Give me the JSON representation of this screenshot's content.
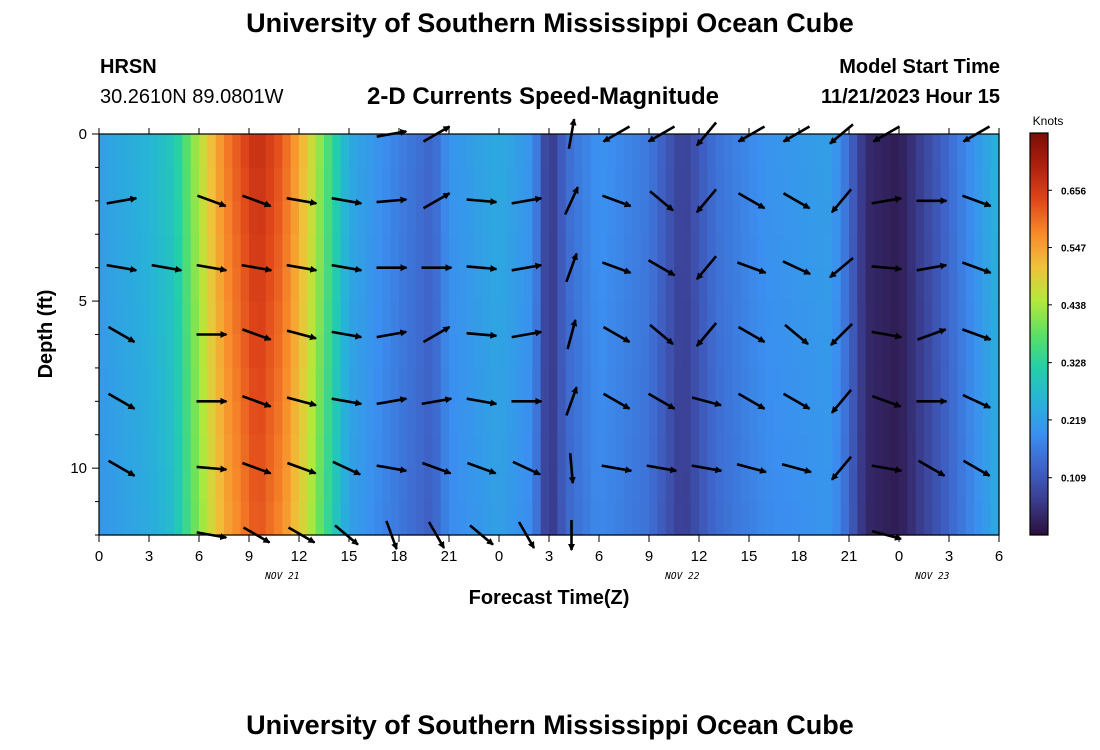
{
  "header": {
    "title": "University of Southern Mississippi Ocean Cube",
    "station": "HRSN",
    "coords": "30.2610N  89.0801W",
    "model_start_label": "Model Start Time",
    "model_start_value": "11/21/2023 Hour 15",
    "footer_title": "University of Southern Mississippi Ocean Cube"
  },
  "chart_data": {
    "type": "heatmap",
    "title": "2-D Currents Speed-Magnitude",
    "xlabel": "Forecast Time(Z)",
    "ylabel": "Depth (ft)",
    "x_tick_labels": [
      "0",
      "3",
      "6",
      "9",
      "12",
      "15",
      "18",
      "21",
      "0",
      "3",
      "6",
      "9",
      "12",
      "15",
      "18",
      "21",
      "0",
      "3",
      "6"
    ],
    "y_ticks": [
      0,
      5,
      10
    ],
    "ylim": [
      0,
      12
    ],
    "y_inverted": true,
    "date_labels": [
      {
        "text": "NOV 21",
        "x_hour": 11
      },
      {
        "text": "NOV 22",
        "x_hour": 35
      },
      {
        "text": "NOV 23",
        "x_hour": 50
      }
    ],
    "x_hours_range": [
      0,
      54
    ],
    "colorbar": {
      "unit": "Knots",
      "ticks": [
        "0.656",
        "0.547",
        "0.438",
        "0.328",
        "0.219",
        "0.109"
      ],
      "min": 0.0,
      "max": 0.765,
      "colors": [
        "#2b0f3a",
        "#3a3b8c",
        "#3f63c8",
        "#3b8ff0",
        "#27b3d8",
        "#23d0a8",
        "#5de063",
        "#b4e83a",
        "#f0c23a",
        "#f88a2a",
        "#e0461a",
        "#b0200f",
        "#7a0d05"
      ]
    },
    "speed_profile_by_hour": [
      {
        "hour": 0,
        "speed": 0.22
      },
      {
        "hour": 3,
        "speed": 0.26
      },
      {
        "hour": 4.5,
        "speed": 0.3
      },
      {
        "hour": 6,
        "speed": 0.45
      },
      {
        "hour": 7.5,
        "speed": 0.58
      },
      {
        "hour": 9.5,
        "speed": 0.68
      },
      {
        "hour": 11,
        "speed": 0.62
      },
      {
        "hour": 12.5,
        "speed": 0.5
      },
      {
        "hour": 14,
        "speed": 0.34
      },
      {
        "hour": 15,
        "speed": 0.24
      },
      {
        "hour": 18,
        "speed": 0.17
      },
      {
        "hour": 20,
        "speed": 0.13
      },
      {
        "hour": 21,
        "speed": 0.2
      },
      {
        "hour": 24,
        "speed": 0.24
      },
      {
        "hour": 26,
        "speed": 0.2
      },
      {
        "hour": 27,
        "speed": 0.05
      },
      {
        "hour": 28,
        "speed": 0.14
      },
      {
        "hour": 30,
        "speed": 0.2
      },
      {
        "hour": 33,
        "speed": 0.16
      },
      {
        "hour": 35,
        "speed": 0.07
      },
      {
        "hour": 37,
        "speed": 0.15
      },
      {
        "hour": 40,
        "speed": 0.2
      },
      {
        "hour": 44,
        "speed": 0.22
      },
      {
        "hour": 45,
        "speed": 0.14
      },
      {
        "hour": 46,
        "speed": 0.04
      },
      {
        "hour": 48,
        "speed": 0.02
      },
      {
        "hour": 50,
        "speed": 0.1
      },
      {
        "hour": 52,
        "speed": 0.18
      },
      {
        "hour": 54,
        "speed": 0.26
      }
    ],
    "vector_rows": [
      {
        "depth": 0,
        "angles": [
          null,
          null,
          null,
          null,
          null,
          null,
          10,
          30,
          null,
          null,
          80,
          -150,
          -150,
          -130,
          -150,
          -150,
          -140,
          -150,
          null,
          -150
        ]
      },
      {
        "depth": 2,
        "angles": [
          10,
          null,
          -20,
          -20,
          -10,
          -10,
          5,
          30,
          -5,
          10,
          65,
          -20,
          -40,
          -130,
          -30,
          -30,
          -130,
          10,
          0,
          -20
        ]
      },
      {
        "depth": 4,
        "angles": [
          -10,
          -10,
          -10,
          -10,
          -10,
          -10,
          0,
          0,
          -5,
          10,
          70,
          -20,
          -30,
          -130,
          -20,
          -25,
          -140,
          -5,
          10,
          -20
        ]
      },
      {
        "depth": 6,
        "angles": [
          -30,
          null,
          0,
          -20,
          -15,
          -10,
          10,
          30,
          -5,
          10,
          75,
          -30,
          -40,
          -130,
          -30,
          -40,
          -135,
          -10,
          20,
          -20
        ]
      },
      {
        "depth": 8,
        "angles": [
          -30,
          null,
          0,
          -20,
          -15,
          -10,
          10,
          10,
          -10,
          0,
          70,
          -30,
          -30,
          -15,
          -30,
          -30,
          -130,
          -20,
          0,
          -25
        ]
      },
      {
        "depth": 10,
        "angles": [
          -30,
          null,
          -5,
          -20,
          -20,
          -25,
          -10,
          -20,
          -20,
          -25,
          -85,
          -10,
          -10,
          -10,
          -15,
          -15,
          -130,
          -10,
          -30,
          -30
        ]
      },
      {
        "depth": 12,
        "angles": [
          null,
          null,
          -10,
          -30,
          -30,
          -40,
          -70,
          -60,
          -40,
          -60,
          -90,
          null,
          null,
          null,
          null,
          null,
          null,
          -15,
          null,
          null
        ]
      }
    ]
  }
}
